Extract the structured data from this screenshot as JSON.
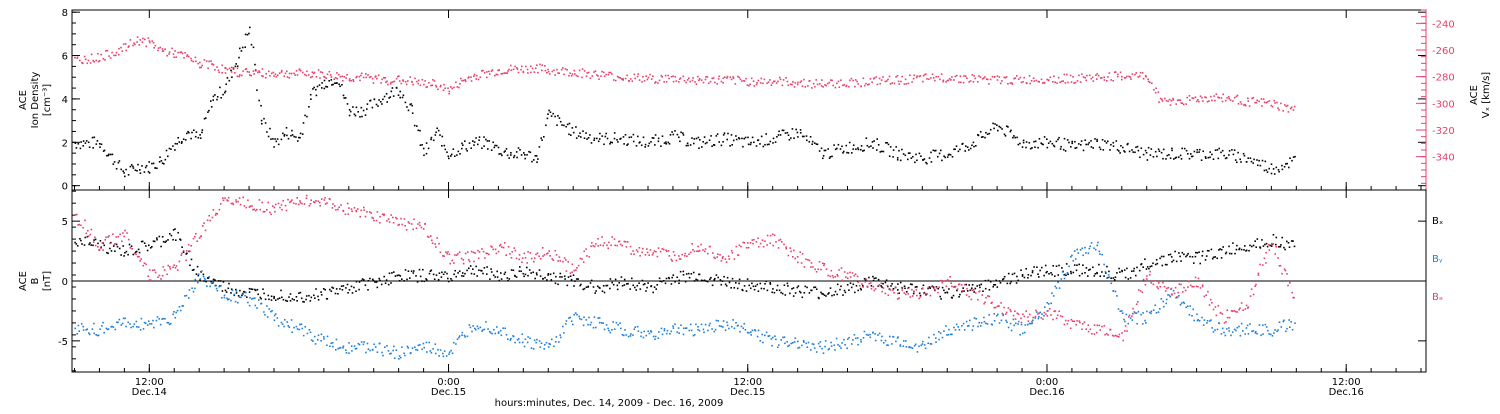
{
  "chart_data": {
    "type": "scatter",
    "xlabel": "hours:minutes, Dec. 14, 2009 - Dec. 16, 2009",
    "x_ticks": [
      {
        "label": "12:00",
        "sublabel": "Dec.14",
        "hours": 12
      },
      {
        "label": "0:00",
        "sublabel": "Dec.15",
        "hours": 24
      },
      {
        "label": "12:00",
        "sublabel": "Dec.15",
        "hours": 36
      },
      {
        "label": "0:00",
        "sublabel": "Dec.16",
        "hours": 48
      },
      {
        "label": "12:00",
        "sublabel": "Dec.16",
        "hours": 60
      }
    ],
    "xlim_hours": [
      8.9,
      63.2
    ],
    "data_end_hours": 57.9,
    "panels": [
      {
        "id": "density-velocity",
        "ylabel": [
          "ACE",
          "Ion Density",
          "[cm⁻³]"
        ],
        "ylim": [
          -0.2,
          8.1
        ],
        "y_ticks": [
          0,
          2,
          4,
          6,
          8
        ],
        "y2label": [
          "ACE",
          "Vₓ [km/s]"
        ],
        "y2lim": [
          -365,
          -230
        ],
        "y2_ticks": [
          -240,
          -260,
          -280,
          -300,
          -320,
          -340
        ],
        "series": [
          {
            "color": "#000000",
            "x": [
              9,
              10,
              11,
              11.5,
              12,
              12.5,
              13,
              13.5,
              14,
              14.5,
              15,
              15.5,
              16,
              16.5,
              17,
              17.5,
              18,
              18.5,
              19,
              19.5,
              20,
              20.5,
              21,
              21.5,
              22,
              22.5,
              23,
              23.5,
              24,
              24.5,
              25,
              25.5,
              26,
              26.5,
              27,
              27.5,
              28,
              29,
              30,
              31,
              32,
              33,
              34,
              35,
              36,
              37,
              38,
              39,
              40,
              41,
              42,
              43,
              44,
              45,
              46,
              47,
              48,
              48.5,
              49,
              50,
              51,
              52,
              53,
              54,
              55,
              56,
              57,
              57.9
            ],
            "y": [
              2.0,
              2.0,
              0.6,
              0.9,
              0.9,
              1.2,
              2.0,
              2.5,
              2.2,
              4.0,
              4.5,
              5.8,
              7.2,
              3.0,
              2.0,
              2.5,
              2.2,
              4.3,
              4.8,
              5.0,
              3.5,
              3.5,
              3.8,
              4.2,
              4.5,
              3.5,
              1.5,
              2.5,
              1.5,
              1.8,
              2.0,
              2.0,
              1.7,
              1.5,
              1.5,
              1.3,
              3.3,
              2.5,
              2.2,
              2.2,
              2.0,
              2.3,
              2.0,
              2.2,
              2.0,
              2.2,
              2.5,
              1.5,
              1.8,
              2.0,
              1.5,
              1.3,
              1.5,
              2.0,
              2.8,
              2.0,
              2.0,
              2.0,
              1.8,
              2.0,
              1.8,
              1.5,
              1.5,
              1.5,
              1.5,
              1.3,
              0.8,
              1.2
            ]
          },
          {
            "color": "#e8406c",
            "axis": "y2",
            "x": [
              9,
              10,
              11,
              11.5,
              12,
              12.5,
              13,
              13.5,
              14,
              14.5,
              15,
              15.5,
              16,
              16.5,
              17,
              17.5,
              18,
              18.5,
              19,
              19.5,
              20,
              20.5,
              21,
              21.5,
              22,
              22.5,
              23,
              23.5,
              24,
              24.5,
              25,
              25.5,
              26,
              26.5,
              27,
              27.5,
              28,
              29,
              30,
              31,
              32,
              33,
              34,
              35,
              36,
              37,
              38,
              39,
              40,
              41,
              42,
              43,
              44,
              45,
              46,
              47,
              48,
              49,
              50,
              51,
              52,
              52.5,
              53,
              54,
              55,
              56,
              57,
              57.9
            ],
            "y": [
              -267,
              -265,
              -258,
              -252,
              -254,
              -260,
              -262,
              -265,
              -270,
              -270,
              -275,
              -276,
              -276,
              -277,
              -277,
              -277,
              -277,
              -277,
              -278,
              -279,
              -280,
              -280,
              -281,
              -282,
              -282,
              -283,
              -285,
              -285,
              -290,
              -283,
              -279,
              -277,
              -275,
              -274,
              -274,
              -273,
              -275,
              -276,
              -278,
              -280,
              -281,
              -281,
              -282,
              -282,
              -283,
              -283,
              -284,
              -285,
              -284,
              -283,
              -282,
              -281,
              -280,
              -281,
              -282,
              -282,
              -281,
              -281,
              -280,
              -279,
              -279,
              -296,
              -298,
              -296,
              -295,
              -298,
              -300,
              -305
            ]
          }
        ]
      },
      {
        "id": "magnetic-field",
        "ylabel": [
          "ACE",
          "B",
          "[nT]"
        ],
        "ylim": [
          -7.6,
          7.6
        ],
        "y_ticks": [
          -5,
          0,
          5
        ],
        "zero_line": true,
        "series": [
          {
            "name": "Bₓ",
            "color": "#000000",
            "x": [
              9,
              10,
              11,
              12,
              13,
              14,
              15,
              16,
              17,
              18,
              19,
              20,
              21,
              22,
              23,
              24,
              25,
              26,
              27,
              28,
              29,
              30,
              31,
              32,
              33,
              34,
              35,
              36,
              37,
              38,
              39,
              40,
              41,
              42,
              43,
              44,
              45,
              46,
              47,
              48,
              49,
              50,
              51,
              52,
              53,
              54,
              55,
              56,
              57,
              57.9
            ],
            "y": [
              3.5,
              3.0,
              2.5,
              3.0,
              4.0,
              0.5,
              -0.5,
              -1.0,
              -1.0,
              -1.2,
              -1.0,
              -0.5,
              0.0,
              0.5,
              0.5,
              0.5,
              1.0,
              0.5,
              0.8,
              0.5,
              0.0,
              -0.5,
              0.0,
              -0.5,
              0.3,
              0.5,
              0.0,
              -0.3,
              -0.5,
              -0.8,
              -1.0,
              -0.5,
              0.0,
              -0.5,
              -0.8,
              -1.0,
              -0.5,
              0.0,
              0.5,
              1.0,
              1.0,
              1.0,
              0.5,
              1.5,
              2.0,
              2.0,
              2.5,
              3.0,
              3.5,
              3.0
            ]
          },
          {
            "name": "Bᵧ",
            "color": "#1f7fd8",
            "x": [
              9,
              10,
              11,
              12,
              13,
              14,
              15,
              16,
              17,
              18,
              19,
              20,
              21,
              22,
              23,
              24,
              25,
              26,
              27,
              28,
              29,
              30,
              31,
              32,
              33,
              34,
              35,
              36,
              37,
              38,
              39,
              40,
              41,
              42,
              43,
              44,
              45,
              46,
              47,
              48,
              49,
              50,
              51,
              52,
              53,
              54,
              55,
              56,
              57,
              57.9
            ],
            "y": [
              -4.0,
              -4.0,
              -3.5,
              -3.5,
              -3.0,
              0.5,
              -1.0,
              -1.5,
              -3.0,
              -4.0,
              -5.0,
              -5.5,
              -5.5,
              -6.0,
              -5.5,
              -6.0,
              -3.5,
              -4.0,
              -5.0,
              -5.5,
              -3.0,
              -3.5,
              -4.0,
              -4.5,
              -4.0,
              -4.0,
              -3.5,
              -4.0,
              -5.0,
              -5.0,
              -5.5,
              -5.0,
              -4.5,
              -5.0,
              -5.5,
              -4.0,
              -3.5,
              -3.0,
              -4.0,
              -2.0,
              2.0,
              3.0,
              -3.0,
              -3.0,
              -1.0,
              -3.0,
              -4.0,
              -4.0,
              -4.0,
              -3.5
            ]
          },
          {
            "name": "Bₔ",
            "color": "#e8406c",
            "x": [
              9,
              10,
              11,
              12,
              13,
              14,
              15,
              16,
              17,
              18,
              19,
              20,
              21,
              22,
              23,
              24,
              25,
              26,
              27,
              28,
              29,
              30,
              31,
              32,
              33,
              34,
              35,
              36,
              37,
              38,
              39,
              40,
              41,
              42,
              43,
              44,
              45,
              46,
              47,
              48,
              49,
              50,
              51,
              52,
              53,
              54,
              55,
              56,
              57,
              57.9
            ],
            "y": [
              5.5,
              3.0,
              4.0,
              0.5,
              1.0,
              4.0,
              7.0,
              6.5,
              6.0,
              7.0,
              6.5,
              6.0,
              5.5,
              5.0,
              4.5,
              2.0,
              2.0,
              3.0,
              2.0,
              2.5,
              1.0,
              3.5,
              3.0,
              2.5,
              2.0,
              3.0,
              2.0,
              3.0,
              3.5,
              2.0,
              1.0,
              0.5,
              -0.5,
              -1.0,
              -1.0,
              0.0,
              -1.0,
              -2.0,
              -3.0,
              -2.5,
              -3.5,
              -4.0,
              -4.5,
              0.5,
              -1.0,
              0.0,
              -3.0,
              -2.0,
              3.5,
              -1.5
            ]
          }
        ]
      }
    ]
  }
}
